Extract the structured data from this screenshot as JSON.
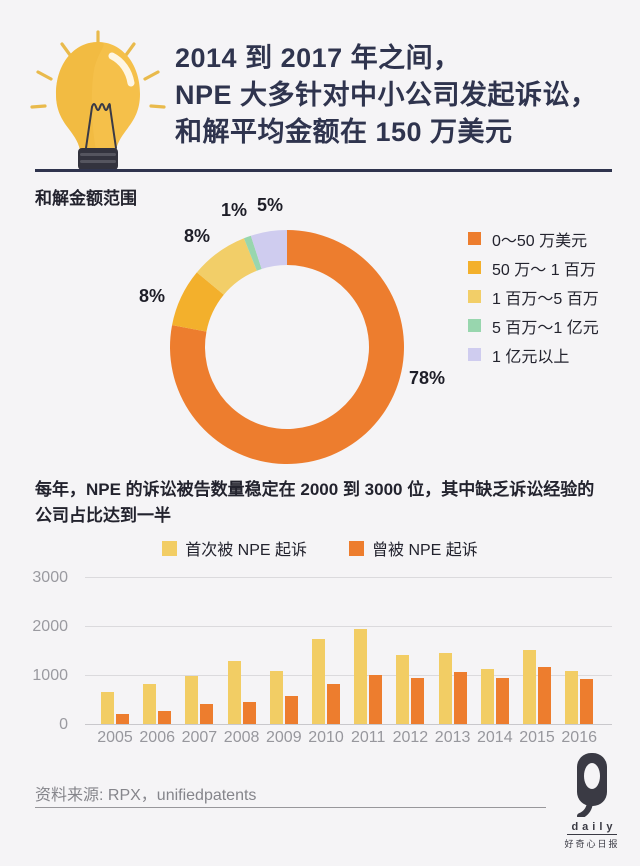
{
  "page": {
    "background": "#F5F4F6",
    "accent_dark": "#2F344E"
  },
  "header": {
    "icon": "lightbulb-icon",
    "title_lines": [
      "2014 到 2017 年之间，",
      "NPE 大多针对中小公司发起诉讼，",
      "和解平均金额在 150 万美元"
    ]
  },
  "donut_section": {
    "label": "和解金额范围"
  },
  "bar_section": {
    "subtitle_lines": [
      "每年，NPE 的诉讼被告数量稳定在 2000 到 3000 位，其中缺乏诉讼经验的",
      "公司占比达到一半"
    ]
  },
  "footer": {
    "source": "资料来源: RPX，unifiedpatents",
    "logo_daily": "daily",
    "logo_cn": "好奇心日报"
  },
  "chart_data": [
    {
      "type": "pie",
      "donut": true,
      "title": "和解金额范围",
      "labels": [
        "0～50 万美元",
        "50 万～ 1 百万",
        "1 百万～5 百万",
        "5 百万～1 亿元",
        "1 亿元以上"
      ],
      "values": [
        78,
        8,
        8,
        1,
        5
      ],
      "pct_labels": [
        "78%",
        "8%",
        "8%",
        "1%",
        "5%"
      ],
      "colors": [
        "#ED7D2E",
        "#F3B02C",
        "#F2CE68",
        "#98D6AE",
        "#CFCCEF"
      ],
      "legend_position": "right",
      "start_angle_deg": 0,
      "direction": "clockwise"
    },
    {
      "type": "bar",
      "categories": [
        "2005",
        "2006",
        "2007",
        "2008",
        "2009",
        "2010",
        "2011",
        "2012",
        "2013",
        "2014",
        "2015",
        "2016"
      ],
      "series": [
        {
          "name": "首次被 NPE 起诉",
          "color": "#F2CD64",
          "values": [
            650,
            820,
            990,
            1290,
            1080,
            1730,
            1930,
            1400,
            1440,
            1130,
            1520,
            1090
          ]
        },
        {
          "name": "曾被 NPE 起诉",
          "color": "#ED7D2E",
          "values": [
            200,
            260,
            400,
            440,
            570,
            820,
            1000,
            950,
            1060,
            950,
            1160,
            910
          ]
        }
      ],
      "ylim": [
        0,
        3000
      ],
      "ytick_labels": [
        "3000",
        "2000",
        "1000",
        "0"
      ],
      "grid": true,
      "legend_position": "top",
      "xlabel": "",
      "ylabel": ""
    }
  ]
}
